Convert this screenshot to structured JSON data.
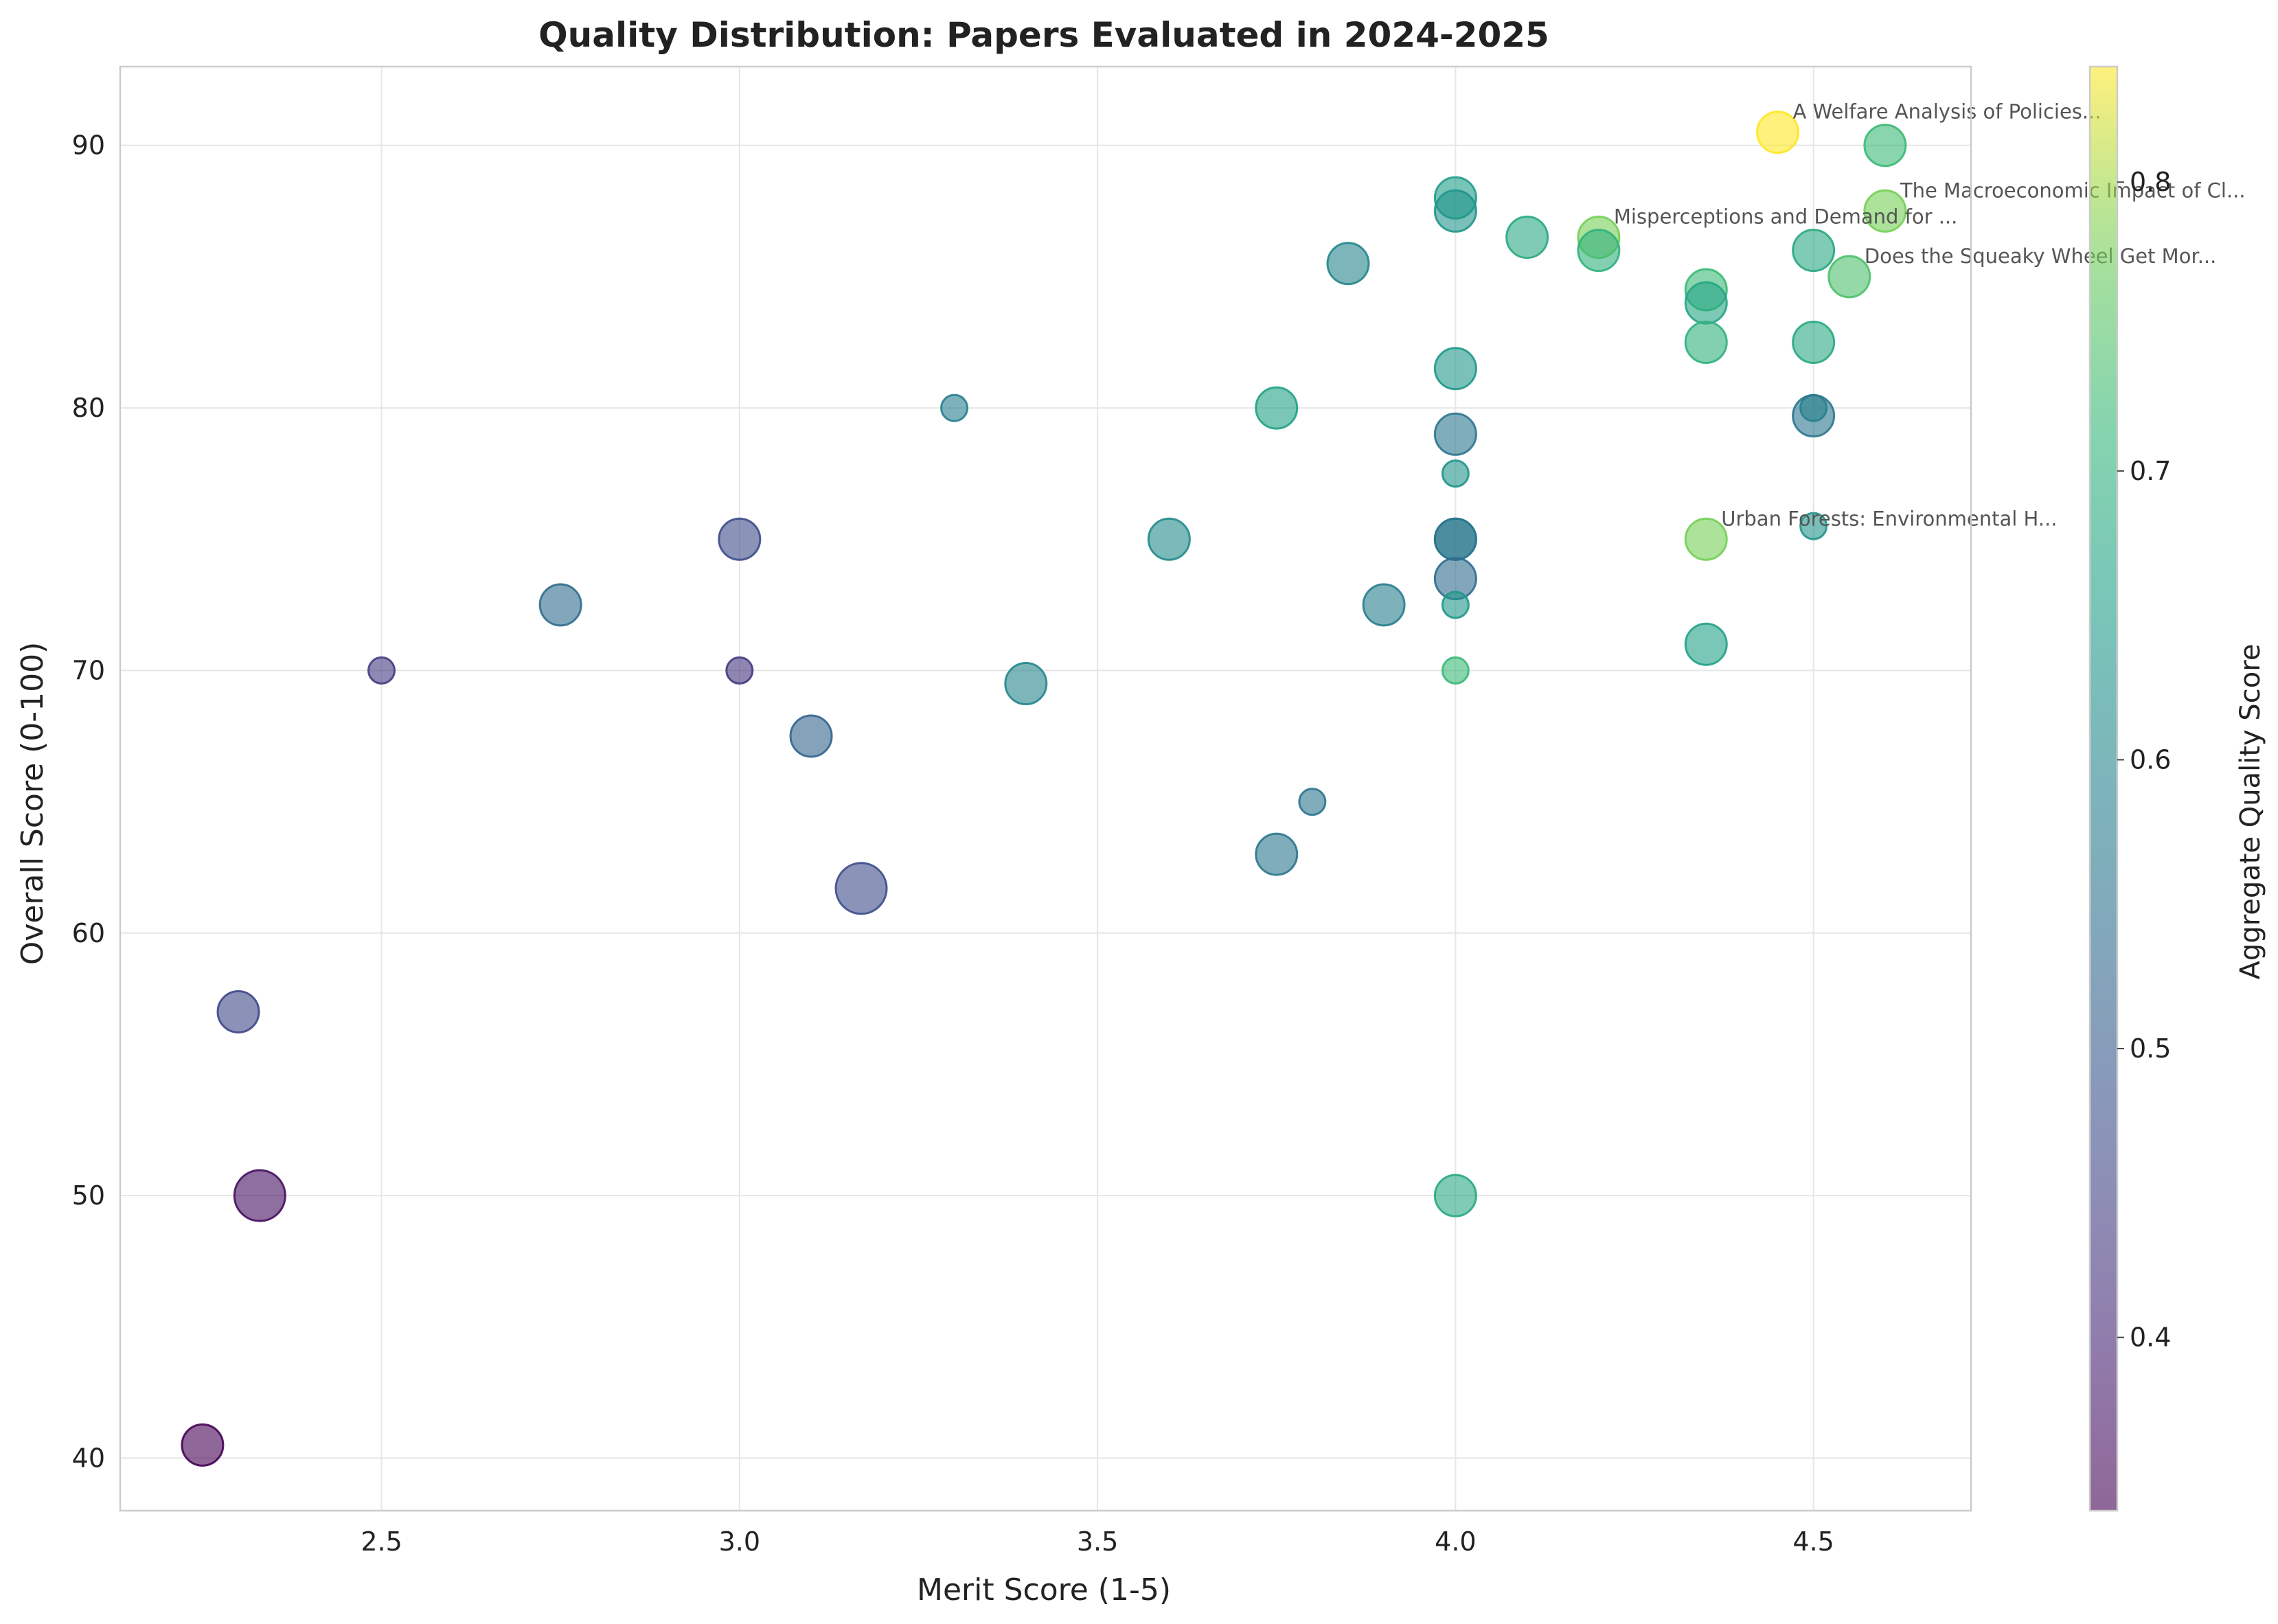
{
  "chart_data": {
    "type": "scatter",
    "title": "Quality Distribution: Papers Evaluated in 2024-2025",
    "xlabel": "Merit Score (1-5)",
    "ylabel": "Overall Score (0-100)",
    "xlim": [
      2.135,
      4.72
    ],
    "ylim": [
      38,
      93
    ],
    "xticks": [
      2.5,
      3.0,
      3.5,
      4.0,
      4.5
    ],
    "xtick_labels": [
      "2.5",
      "3.0",
      "3.5",
      "4.0",
      "4.5"
    ],
    "yticks": [
      40,
      50,
      60,
      70,
      80,
      90
    ],
    "ytick_labels": [
      "40",
      "50",
      "60",
      "70",
      "80",
      "90"
    ],
    "grid": true,
    "colorbar": {
      "label": "Aggregate Quality Score",
      "colormap": "viridis",
      "range": [
        0.34,
        0.84
      ],
      "ticks": [
        0.4,
        0.5,
        0.6,
        0.7,
        0.8
      ],
      "tick_labels": [
        "0.4",
        "0.5",
        "0.6",
        "0.7",
        "0.8"
      ]
    },
    "marker_opacity": 0.6,
    "points": [
      {
        "x": 4.45,
        "y": 90.5,
        "c": 0.84,
        "size": 3
      },
      {
        "x": 4.6,
        "y": 90.0,
        "c": 0.72,
        "size": 3
      },
      {
        "x": 4.6,
        "y": 87.5,
        "c": 0.78,
        "size": 3
      },
      {
        "x": 4.0,
        "y": 88.0,
        "c": 0.65,
        "size": 3
      },
      {
        "x": 4.0,
        "y": 87.5,
        "c": 0.63,
        "size": 3
      },
      {
        "x": 4.1,
        "y": 86.5,
        "c": 0.68,
        "size": 3
      },
      {
        "x": 4.2,
        "y": 86.5,
        "c": 0.78,
        "size": 3
      },
      {
        "x": 4.2,
        "y": 86.0,
        "c": 0.7,
        "size": 3
      },
      {
        "x": 4.5,
        "y": 86.0,
        "c": 0.68,
        "size": 3
      },
      {
        "x": 4.55,
        "y": 85.0,
        "c": 0.74,
        "size": 3
      },
      {
        "x": 3.85,
        "y": 85.5,
        "c": 0.6,
        "size": 3
      },
      {
        "x": 4.35,
        "y": 84.5,
        "c": 0.72,
        "size": 3
      },
      {
        "x": 4.35,
        "y": 84.0,
        "c": 0.67,
        "size": 3
      },
      {
        "x": 4.35,
        "y": 82.5,
        "c": 0.7,
        "size": 3
      },
      {
        "x": 4.5,
        "y": 82.5,
        "c": 0.68,
        "size": 3
      },
      {
        "x": 4.0,
        "y": 81.5,
        "c": 0.64,
        "size": 3
      },
      {
        "x": 3.3,
        "y": 80.0,
        "c": 0.58,
        "size": 1
      },
      {
        "x": 3.75,
        "y": 80.0,
        "c": 0.66,
        "size": 3
      },
      {
        "x": 4.5,
        "y": 80.0,
        "c": 0.62,
        "size": 1
      },
      {
        "x": 4.5,
        "y": 79.7,
        "c": 0.56,
        "size": 3
      },
      {
        "x": 4.0,
        "y": 79.0,
        "c": 0.56,
        "size": 3
      },
      {
        "x": 4.0,
        "y": 77.5,
        "c": 0.63,
        "size": 1
      },
      {
        "x": 3.0,
        "y": 75.0,
        "c": 0.47,
        "size": 3
      },
      {
        "x": 3.6,
        "y": 75.0,
        "c": 0.61,
        "size": 3
      },
      {
        "x": 4.0,
        "y": 75.0,
        "c": 0.58,
        "size": 3
      },
      {
        "x": 4.0,
        "y": 75.0,
        "c": 0.56,
        "size": 3
      },
      {
        "x": 4.35,
        "y": 75.0,
        "c": 0.78,
        "size": 3
      },
      {
        "x": 4.5,
        "y": 75.5,
        "c": 0.63,
        "size": 1
      },
      {
        "x": 4.0,
        "y": 73.5,
        "c": 0.54,
        "size": 3
      },
      {
        "x": 2.75,
        "y": 72.5,
        "c": 0.54,
        "size": 3
      },
      {
        "x": 3.9,
        "y": 72.5,
        "c": 0.58,
        "size": 3
      },
      {
        "x": 4.0,
        "y": 72.5,
        "c": 0.64,
        "size": 1
      },
      {
        "x": 4.35,
        "y": 71.0,
        "c": 0.66,
        "size": 3
      },
      {
        "x": 2.5,
        "y": 70.0,
        "c": 0.44,
        "size": 1
      },
      {
        "x": 3.0,
        "y": 70.0,
        "c": 0.43,
        "size": 1
      },
      {
        "x": 4.0,
        "y": 70.0,
        "c": 0.72,
        "size": 1
      },
      {
        "x": 3.4,
        "y": 69.5,
        "c": 0.6,
        "size": 3
      },
      {
        "x": 3.1,
        "y": 67.5,
        "c": 0.52,
        "size": 3
      },
      {
        "x": 3.8,
        "y": 65.0,
        "c": 0.56,
        "size": 1
      },
      {
        "x": 3.75,
        "y": 63.0,
        "c": 0.56,
        "size": 3
      },
      {
        "x": 3.17,
        "y": 61.7,
        "c": 0.47,
        "size": 5
      },
      {
        "x": 2.3,
        "y": 57.0,
        "c": 0.46,
        "size": 3
      },
      {
        "x": 4.0,
        "y": 50.0,
        "c": 0.68,
        "size": 3
      },
      {
        "x": 2.33,
        "y": 50.0,
        "c": 0.36,
        "size": 5
      },
      {
        "x": 2.25,
        "y": 40.5,
        "c": 0.34,
        "size": 3
      }
    ],
    "annotations": [
      {
        "text": "A Welfare Analysis of Policies...",
        "x": 4.45,
        "y": 90.5
      },
      {
        "text": "The Macroeconomic Impact of Cl...",
        "x": 4.6,
        "y": 87.5
      },
      {
        "text": "Misperceptions and Demand for ...",
        "x": 4.2,
        "y": 86.5
      },
      {
        "text": "Does the Squeaky Wheel Get Mor...",
        "x": 4.55,
        "y": 85.0
      },
      {
        "text": "Urban Forests: Environmental H...",
        "x": 4.35,
        "y": 75.0
      }
    ]
  }
}
